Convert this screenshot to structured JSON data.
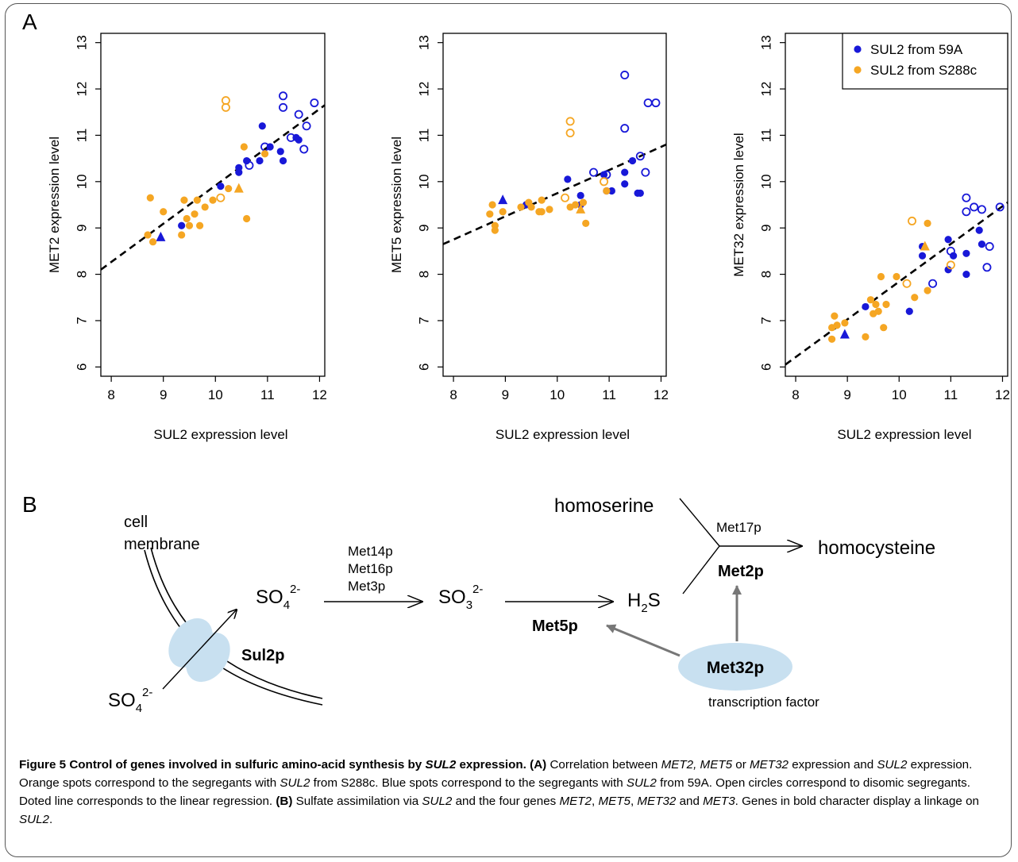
{
  "panel_a": {
    "letter": "A",
    "legend": [
      {
        "label": "SUL2 from 59A",
        "color": "#1818d8"
      },
      {
        "label": "SUL2 from S288c",
        "color": "#f5a623"
      }
    ],
    "colors": {
      "blue": "#1818d8",
      "orange": "#f5a623"
    }
  },
  "chart_data": [
    {
      "type": "scatter",
      "xlabel": "SUL2 expression level",
      "ylabel": "MET2 expression level",
      "xlim": [
        7.8,
        12.1
      ],
      "ylim": [
        5.8,
        13.2
      ],
      "xticks": [
        8,
        9,
        10,
        11,
        12
      ],
      "yticks": [
        6,
        7,
        8,
        9,
        10,
        11,
        12,
        13
      ],
      "regression": [
        [
          7.8,
          8.1
        ],
        [
          12.1,
          11.65
        ]
      ],
      "series": [
        {
          "name": "SUL2 from 59A",
          "group": "blue",
          "filled": [
            [
              9.35,
              9.05
            ],
            [
              10.1,
              9.9
            ],
            [
              10.45,
              10.3
            ],
            [
              10.45,
              10.2
            ],
            [
              10.6,
              10.45
            ],
            [
              10.85,
              10.45
            ],
            [
              10.9,
              11.2
            ],
            [
              11.05,
              10.75
            ],
            [
              11.25,
              10.65
            ],
            [
              11.3,
              10.45
            ],
            [
              11.55,
              10.95
            ],
            [
              11.6,
              10.9
            ]
          ],
          "open": [
            [
              10.65,
              10.35
            ],
            [
              10.95,
              10.75
            ],
            [
              11.3,
              11.85
            ],
            [
              11.3,
              11.6
            ],
            [
              11.45,
              10.95
            ],
            [
              11.6,
              11.45
            ],
            [
              11.7,
              10.7
            ],
            [
              11.75,
              11.2
            ],
            [
              11.9,
              11.7
            ]
          ],
          "triangle": [
            [
              8.95,
              8.8
            ]
          ]
        },
        {
          "name": "SUL2 from S288c",
          "group": "orange",
          "filled": [
            [
              8.7,
              8.85
            ],
            [
              8.75,
              9.65
            ],
            [
              8.8,
              8.7
            ],
            [
              9.0,
              9.35
            ],
            [
              9.35,
              8.85
            ],
            [
              9.4,
              9.6
            ],
            [
              9.45,
              9.2
            ],
            [
              9.5,
              9.05
            ],
            [
              9.6,
              9.3
            ],
            [
              9.65,
              9.6
            ],
            [
              9.7,
              9.05
            ],
            [
              9.8,
              9.45
            ],
            [
              9.95,
              9.6
            ],
            [
              10.55,
              10.75
            ],
            [
              10.6,
              9.2
            ],
            [
              10.25,
              9.85
            ],
            [
              10.95,
              10.6
            ]
          ],
          "open": [
            [
              10.2,
              11.75
            ],
            [
              10.2,
              11.6
            ],
            [
              10.1,
              9.65
            ]
          ],
          "triangle": [
            [
              10.45,
              9.85
            ]
          ]
        }
      ]
    },
    {
      "type": "scatter",
      "xlabel": "SUL2 expression level",
      "ylabel": "MET5 expression level",
      "xlim": [
        7.8,
        12.1
      ],
      "ylim": [
        5.8,
        13.2
      ],
      "xticks": [
        8,
        9,
        10,
        11,
        12
      ],
      "yticks": [
        6,
        7,
        8,
        9,
        10,
        11,
        12,
        13
      ],
      "regression": [
        [
          7.8,
          8.65
        ],
        [
          12.1,
          10.8
        ]
      ],
      "series": [
        {
          "name": "SUL2 from 59A",
          "group": "blue",
          "filled": [
            [
              9.4,
              9.5
            ],
            [
              10.2,
              10.05
            ],
            [
              10.45,
              9.7
            ],
            [
              10.45,
              9.5
            ],
            [
              10.9,
              10.15
            ],
            [
              10.95,
              9.8
            ],
            [
              11.05,
              9.8
            ],
            [
              11.3,
              10.2
            ],
            [
              11.3,
              9.95
            ],
            [
              11.45,
              10.45
            ],
            [
              11.55,
              9.75
            ],
            [
              11.6,
              9.75
            ]
          ],
          "open": [
            [
              10.7,
              10.2
            ],
            [
              10.95,
              10.15
            ],
            [
              11.3,
              12.3
            ],
            [
              11.3,
              11.15
            ],
            [
              11.6,
              10.55
            ],
            [
              11.7,
              10.2
            ],
            [
              11.75,
              11.7
            ],
            [
              11.9,
              11.7
            ]
          ],
          "triangle": [
            [
              8.95,
              9.6
            ]
          ]
        },
        {
          "name": "SUL2 from S288c",
          "group": "orange",
          "filled": [
            [
              8.7,
              9.3
            ],
            [
              8.75,
              9.5
            ],
            [
              8.8,
              9.05
            ],
            [
              8.8,
              8.95
            ],
            [
              8.95,
              9.35
            ],
            [
              9.3,
              9.45
            ],
            [
              9.45,
              9.55
            ],
            [
              9.5,
              9.45
            ],
            [
              9.65,
              9.35
            ],
            [
              9.7,
              9.6
            ],
            [
              9.7,
              9.35
            ],
            [
              9.85,
              9.4
            ],
            [
              10.25,
              9.45
            ],
            [
              10.35,
              9.5
            ],
            [
              10.55,
              9.1
            ],
            [
              10.5,
              9.55
            ],
            [
              10.95,
              9.8
            ]
          ],
          "open": [
            [
              10.25,
              11.3
            ],
            [
              10.25,
              11.05
            ],
            [
              10.15,
              9.65
            ],
            [
              10.9,
              10.0
            ]
          ],
          "triangle": [
            [
              10.45,
              9.4
            ]
          ]
        }
      ]
    },
    {
      "type": "scatter",
      "xlabel": "SUL2 expression level",
      "ylabel": "MET32 expression level",
      "xlim": [
        7.8,
        12.1
      ],
      "ylim": [
        5.8,
        13.2
      ],
      "xticks": [
        8,
        9,
        10,
        11,
        12
      ],
      "yticks": [
        6,
        7,
        8,
        9,
        10,
        11,
        12,
        13
      ],
      "regression": [
        [
          7.8,
          6.05
        ],
        [
          12.1,
          9.55
        ]
      ],
      "legend": "top-right",
      "series": [
        {
          "name": "SUL2 from 59A",
          "group": "blue",
          "filled": [
            [
              9.35,
              7.3
            ],
            [
              10.2,
              7.2
            ],
            [
              10.45,
              8.6
            ],
            [
              10.45,
              8.4
            ],
            [
              10.95,
              8.75
            ],
            [
              10.95,
              8.1
            ],
            [
              11.05,
              8.4
            ],
            [
              11.3,
              8.45
            ],
            [
              11.3,
              8.0
            ],
            [
              11.55,
              8.95
            ],
            [
              11.6,
              8.65
            ]
          ],
          "open": [
            [
              10.65,
              7.8
            ],
            [
              11.0,
              8.5
            ],
            [
              11.3,
              9.65
            ],
            [
              11.3,
              9.35
            ],
            [
              11.45,
              9.45
            ],
            [
              11.6,
              9.4
            ],
            [
              11.7,
              8.15
            ],
            [
              11.75,
              8.6
            ],
            [
              11.95,
              9.45
            ]
          ],
          "triangle": [
            [
              8.95,
              6.7
            ]
          ]
        },
        {
          "name": "SUL2 from S288c",
          "group": "orange",
          "filled": [
            [
              8.7,
              6.6
            ],
            [
              8.7,
              6.85
            ],
            [
              8.75,
              7.1
            ],
            [
              8.8,
              6.9
            ],
            [
              8.95,
              6.95
            ],
            [
              9.35,
              6.65
            ],
            [
              9.45,
              7.45
            ],
            [
              9.5,
              7.15
            ],
            [
              9.55,
              7.35
            ],
            [
              9.6,
              7.2
            ],
            [
              9.65,
              7.95
            ],
            [
              9.7,
              6.85
            ],
            [
              9.75,
              7.35
            ],
            [
              9.95,
              7.95
            ],
            [
              10.3,
              7.5
            ],
            [
              10.55,
              9.1
            ],
            [
              10.55,
              7.65
            ]
          ],
          "open": [
            [
              10.15,
              7.8
            ],
            [
              10.25,
              9.15
            ],
            [
              11.0,
              8.2
            ]
          ],
          "triangle": [
            [
              10.5,
              8.6
            ]
          ]
        }
      ]
    }
  ],
  "panel_b": {
    "letter": "B",
    "cell_membrane": [
      "cell",
      "membrane"
    ],
    "so4_outside": {
      "base": "SO",
      "sub": "4",
      "sup": "2-"
    },
    "so4_inside": {
      "base": "SO",
      "sub": "4",
      "sup": "2-"
    },
    "sul2p": "Sul2p",
    "enzymes_first": [
      "Met14p",
      "Met16p",
      "Met3p"
    ],
    "so3": {
      "base": "SO",
      "sub": "3",
      "sup": "2-"
    },
    "met5p": "Met5p",
    "h2s": {
      "base": "H",
      "sub": "2",
      "tail": "S"
    },
    "homoserine": "homoserine",
    "met17p": "Met17p",
    "met2p": "Met2p",
    "homocysteine": "homocysteine",
    "met32p": "Met32p",
    "transcription_factor": "transcription factor",
    "colors": {
      "transporter": "#c8e0f0",
      "regulation_arrow": "#777777"
    }
  },
  "caption": {
    "figure_label": "Figure 5",
    "title_parts": [
      "Control of genes involved in sulfuric amino-acid synthesis by ",
      "SUL2",
      " expression."
    ],
    "a_label": "(A)",
    "a_parts": [
      " Correlation between ",
      "MET2, MET5",
      " or ",
      "MET32",
      " expression and ",
      "SUL2",
      " expression. Orange spots correspond to the segregants with ",
      "SUL2",
      " from S288c. Blue spots correspond to the segregants with ",
      "SUL2",
      " from 59A. Open circles correspond to disomic segregants. Doted line corresponds to the linear regression. "
    ],
    "b_label": "(B)",
    "b_parts": [
      " Sulfate assimilation via ",
      "SUL2",
      " and the four genes ",
      "MET2",
      ", ",
      "MET5",
      ", ",
      "MET32",
      " and ",
      "MET3",
      ". Genes in bold character display a linkage on ",
      "SUL2",
      "."
    ]
  }
}
